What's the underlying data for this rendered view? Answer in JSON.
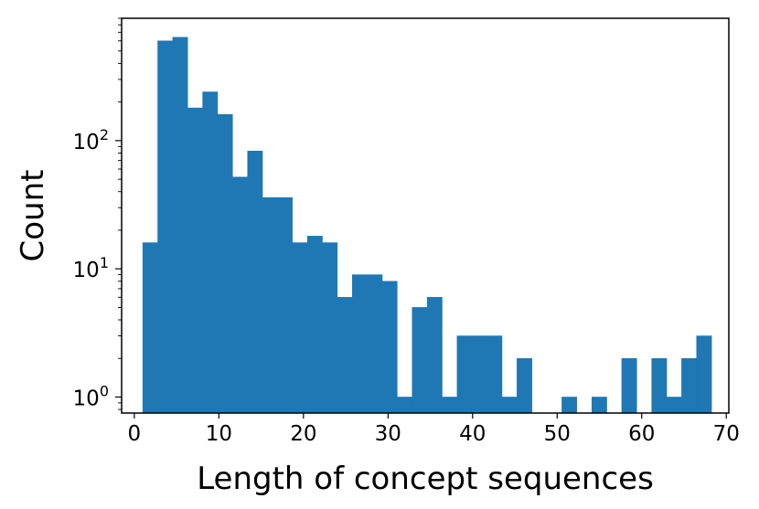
{
  "chart_data": {
    "type": "bar",
    "subtype": "histogram",
    "xlabel": "Length of concept sequences",
    "ylabel": "Count",
    "xlim": [
      -1.5,
      70.3
    ],
    "ylim": [
      0.75,
      900
    ],
    "yscale": "log",
    "x_ticks": [
      0,
      10,
      20,
      30,
      40,
      50,
      60,
      70
    ],
    "x_tick_labels": [
      "0",
      "10",
      "20",
      "30",
      "40",
      "50",
      "60",
      "70"
    ],
    "y_ticks": [
      1,
      10,
      100
    ],
    "y_tick_labels": [
      {
        "base": "10",
        "exp": "0"
      },
      {
        "base": "10",
        "exp": "1"
      },
      {
        "base": "10",
        "exp": "2"
      }
    ],
    "grid": false,
    "bar_color": "#1f77b4",
    "bins": [
      {
        "x0": 1.0,
        "x1": 2.77,
        "count": 16
      },
      {
        "x0": 2.77,
        "x1": 4.54,
        "count": 600
      },
      {
        "x0": 4.54,
        "x1": 6.31,
        "count": 640
      },
      {
        "x0": 6.31,
        "x1": 8.08,
        "count": 180
      },
      {
        "x0": 8.08,
        "x1": 9.85,
        "count": 240
      },
      {
        "x0": 9.85,
        "x1": 11.62,
        "count": 160
      },
      {
        "x0": 11.62,
        "x1": 13.39,
        "count": 52
      },
      {
        "x0": 13.39,
        "x1": 15.16,
        "count": 83
      },
      {
        "x0": 15.16,
        "x1": 16.93,
        "count": 36
      },
      {
        "x0": 16.93,
        "x1": 18.7,
        "count": 36
      },
      {
        "x0": 18.7,
        "x1": 20.47,
        "count": 16
      },
      {
        "x0": 20.47,
        "x1": 22.24,
        "count": 18
      },
      {
        "x0": 22.24,
        "x1": 24.01,
        "count": 16
      },
      {
        "x0": 24.01,
        "x1": 25.78,
        "count": 6
      },
      {
        "x0": 25.78,
        "x1": 27.55,
        "count": 9
      },
      {
        "x0": 27.55,
        "x1": 29.32,
        "count": 9
      },
      {
        "x0": 29.32,
        "x1": 31.09,
        "count": 8
      },
      {
        "x0": 31.09,
        "x1": 32.86,
        "count": 1
      },
      {
        "x0": 32.86,
        "x1": 34.63,
        "count": 5
      },
      {
        "x0": 34.63,
        "x1": 36.4,
        "count": 6
      },
      {
        "x0": 36.4,
        "x1": 38.17,
        "count": 1
      },
      {
        "x0": 38.17,
        "x1": 39.94,
        "count": 3
      },
      {
        "x0": 39.94,
        "x1": 41.71,
        "count": 3
      },
      {
        "x0": 41.71,
        "x1": 43.48,
        "count": 3
      },
      {
        "x0": 43.48,
        "x1": 45.25,
        "count": 1
      },
      {
        "x0": 45.25,
        "x1": 47.02,
        "count": 2
      },
      {
        "x0": 47.02,
        "x1": 48.79,
        "count": 0
      },
      {
        "x0": 48.79,
        "x1": 50.56,
        "count": 0
      },
      {
        "x0": 50.56,
        "x1": 52.33,
        "count": 1
      },
      {
        "x0": 52.33,
        "x1": 54.1,
        "count": 0
      },
      {
        "x0": 54.1,
        "x1": 55.87,
        "count": 1
      },
      {
        "x0": 55.87,
        "x1": 57.64,
        "count": 0
      },
      {
        "x0": 57.64,
        "x1": 59.41,
        "count": 2
      },
      {
        "x0": 59.41,
        "x1": 61.18,
        "count": 0
      },
      {
        "x0": 61.18,
        "x1": 62.95,
        "count": 2
      },
      {
        "x0": 62.95,
        "x1": 64.72,
        "count": 1
      },
      {
        "x0": 64.72,
        "x1": 66.49,
        "count": 2
      },
      {
        "x0": 66.49,
        "x1": 68.26,
        "count": 3
      }
    ]
  }
}
